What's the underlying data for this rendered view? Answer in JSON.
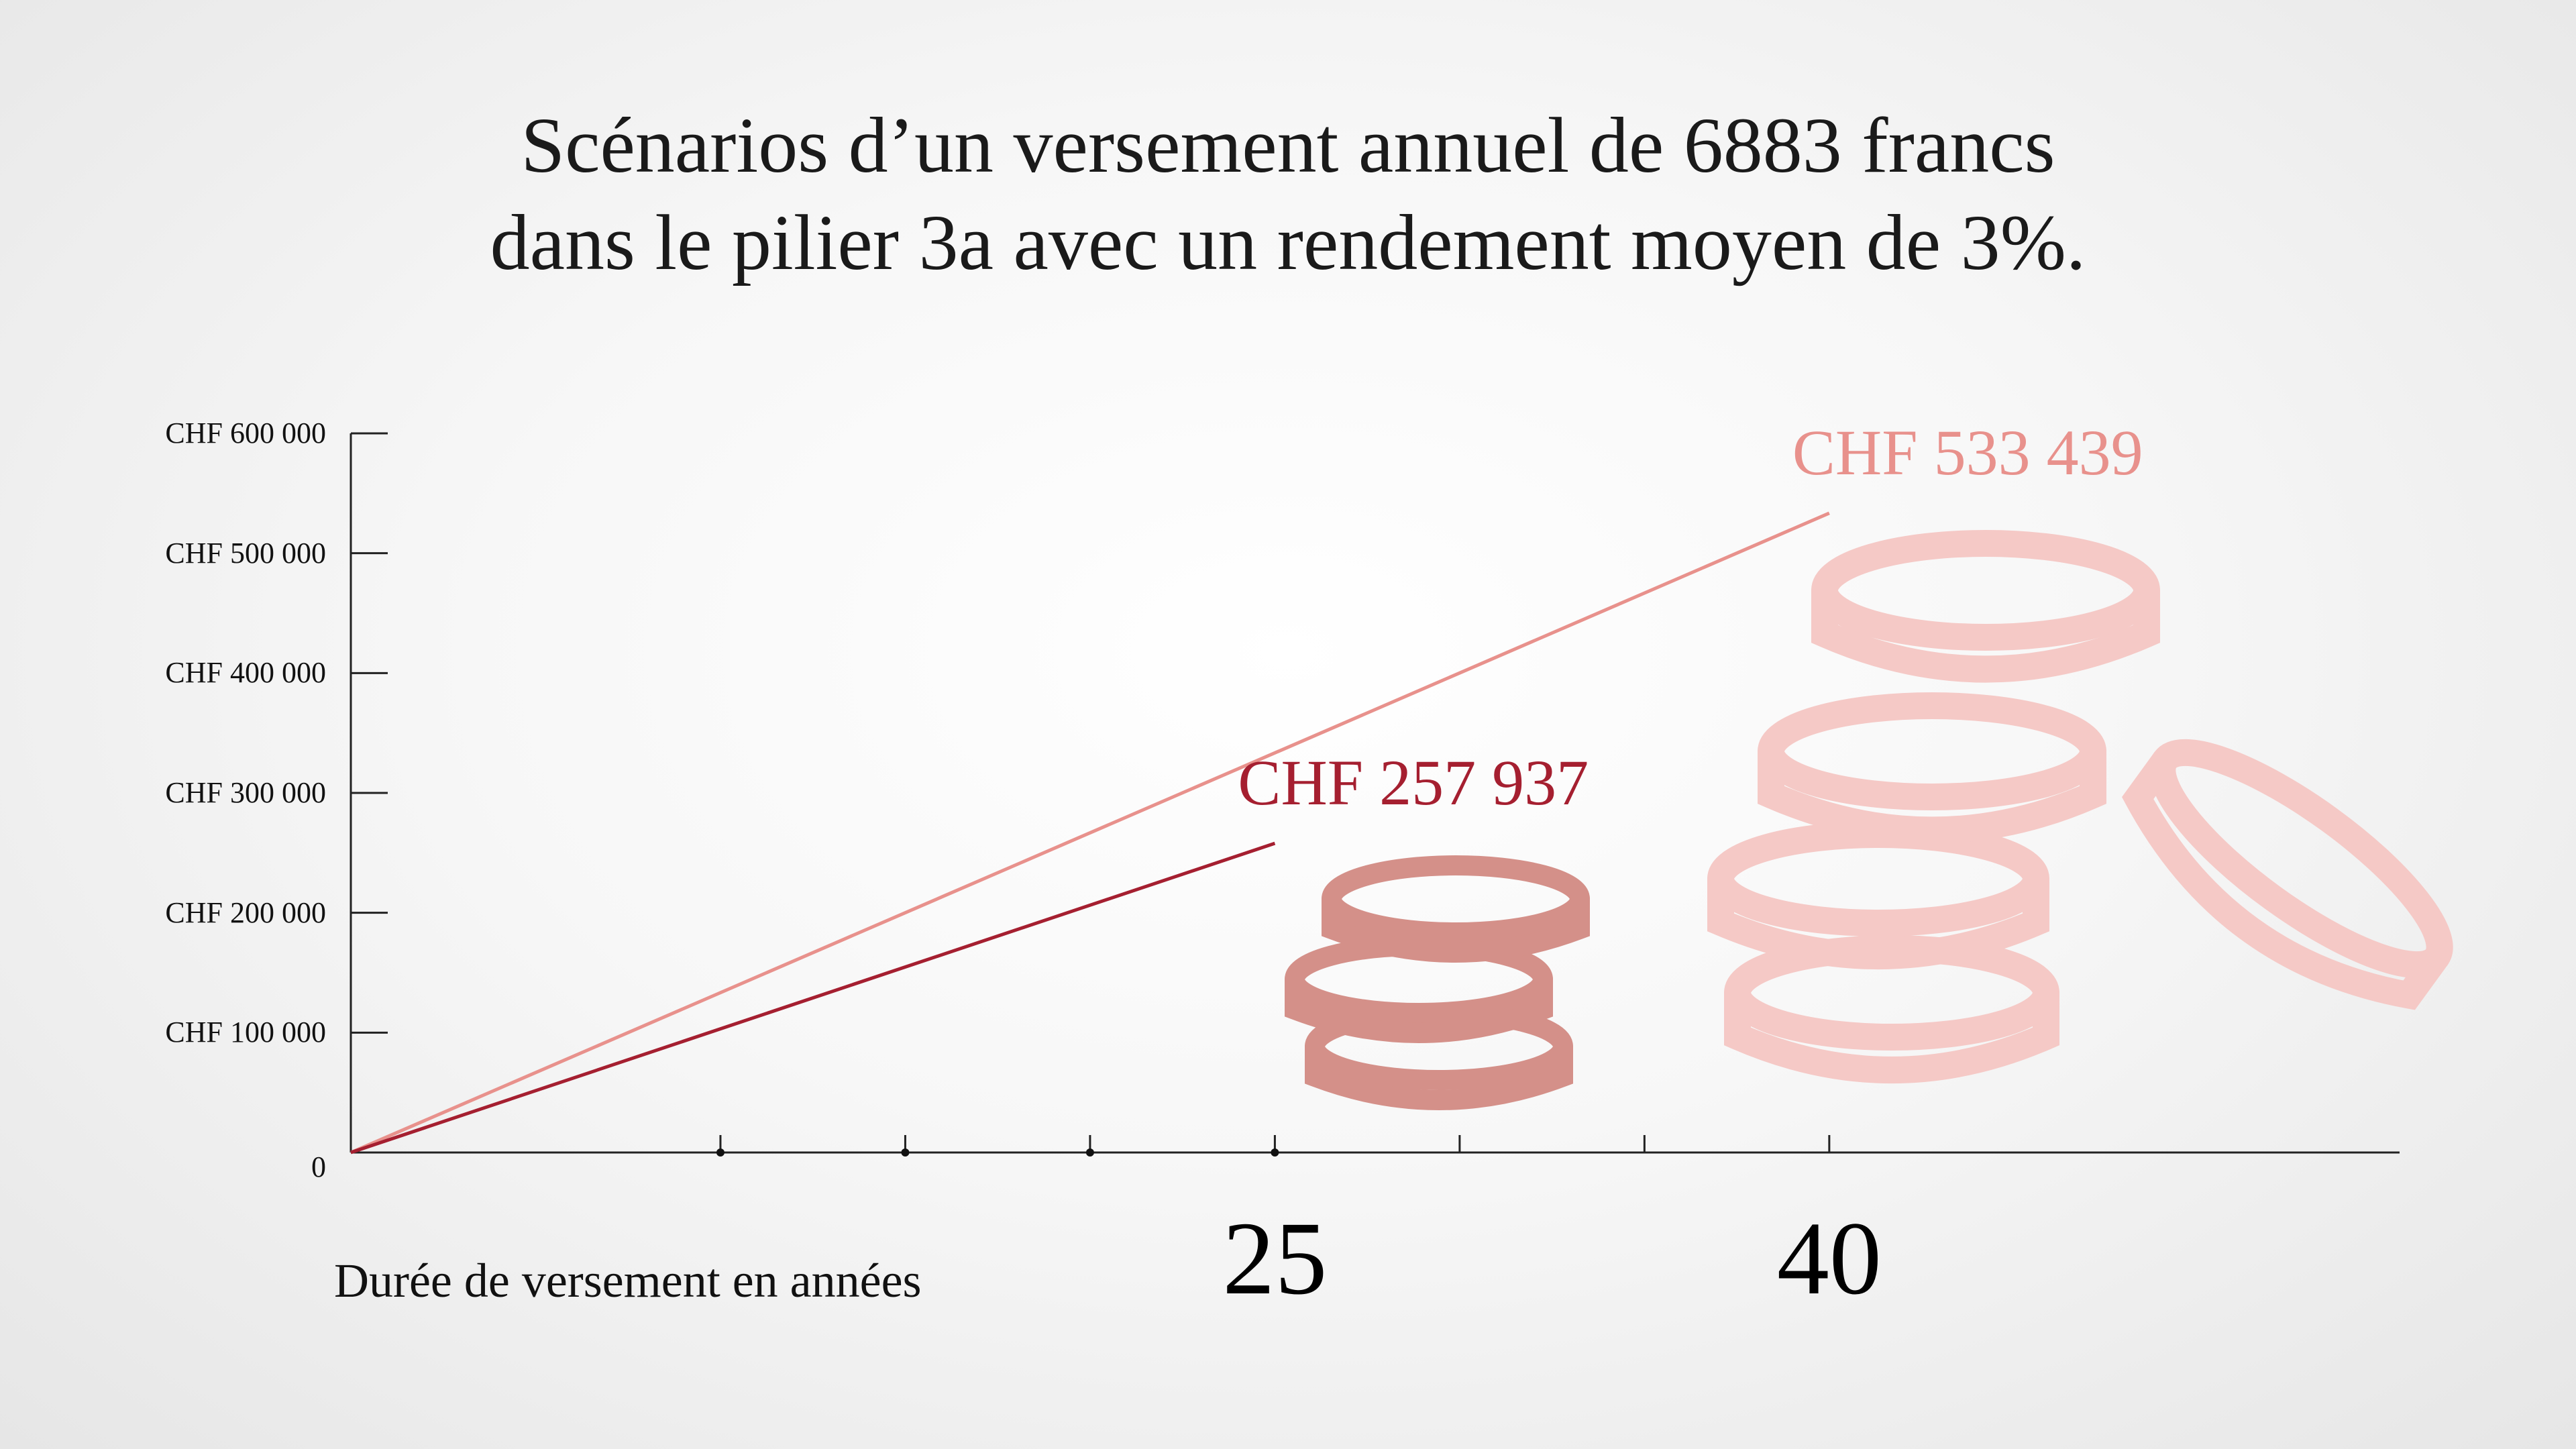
{
  "chart_data": {
    "type": "line",
    "title": "Scénarios d’un versement annuel de 6883 francs dans le pilier 3a avec un rendement moyen de 3%.",
    "title_lines": [
      "Scénarios d’un versement annuel de 6883 francs",
      "dans le pilier 3a avec un rendement moyen de 3%."
    ],
    "xlabel": "Durée de versement en années",
    "ylabel": "",
    "xlim": [
      0,
      40
    ],
    "ylim": [
      0,
      600000
    ],
    "y_tick_values": [
      0,
      100000,
      200000,
      300000,
      400000,
      500000,
      600000
    ],
    "y_tick_labels": [
      "0",
      "CHF 100 000",
      "CHF 200 000",
      "CHF 300 000",
      "CHF 400 000",
      "CHF 500 000",
      "CHF 600 000"
    ],
    "x_tick_values": [
      10,
      15,
      20,
      25,
      30,
      35,
      40
    ],
    "x_highlight_labels": [
      {
        "x": 25,
        "label": "25"
      },
      {
        "x": 40,
        "label": "40"
      }
    ],
    "series": [
      {
        "color": "#e8918c",
        "points": [
          {
            "x": 0,
            "y": 0
          },
          {
            "x": 40,
            "y": 533439
          }
        ],
        "end_label": "CHF 533 439"
      },
      {
        "color": "#a51f30",
        "points": [
          {
            "x": 0,
            "y": 0
          },
          {
            "x": 25,
            "y": 257937
          }
        ],
        "end_label": "CHF 257 937"
      }
    ],
    "grid": false,
    "legend": "none"
  },
  "decor": {
    "coins_small_color": "#d49089",
    "coins_large_color": "#f5c9c6",
    "small_coins_icon": "coin-stack-icon",
    "large_coins_icon": "coin-stack-icon"
  }
}
